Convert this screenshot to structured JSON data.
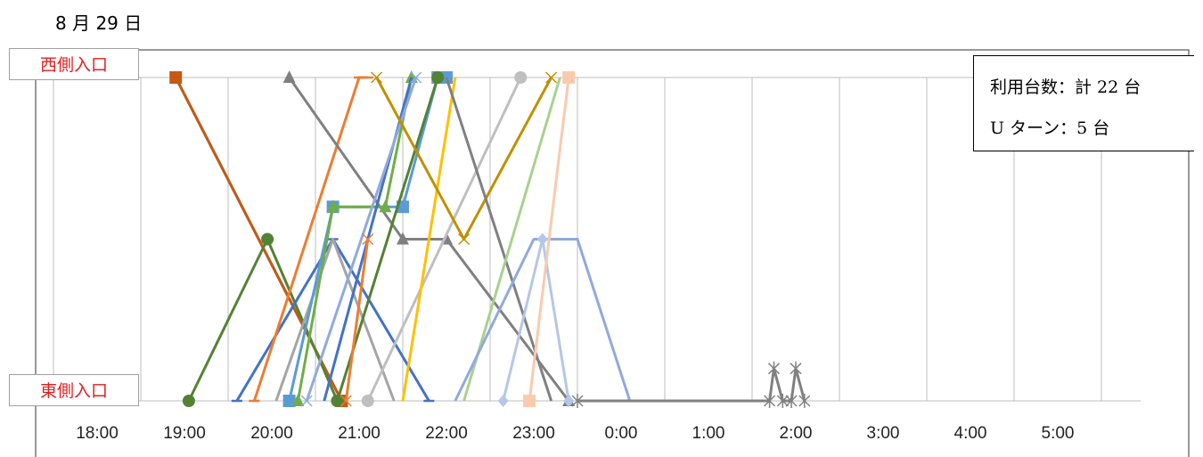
{
  "date_title": "8 月 29 日",
  "entrances": {
    "west": "西側入口",
    "east": "東側入口"
  },
  "info": {
    "usage": "利用台数：計 22 台",
    "uturn": "U ターン：5 台"
  },
  "chart_data": {
    "type": "line",
    "title": "8 月 29 日",
    "xlabel": "",
    "ylabel": "",
    "x_ticks": [
      "18:00",
      "19:00",
      "20:00",
      "21:00",
      "22:00",
      "23:00",
      "0:00",
      "1:00",
      "2:00",
      "3:00",
      "4:00",
      "5:00"
    ],
    "xlim": [
      17.0,
      30.0
    ],
    "y_levels": {
      "west": 1.0,
      "mid_upper": 0.6,
      "mid": 0.5,
      "east": 0.0
    },
    "grid": "vertical",
    "series": [
      {
        "color": "#4472c4",
        "marker": "none",
        "points": [
          [
            18.9,
            1
          ],
          [
            20.8,
            0
          ]
        ]
      },
      {
        "color": "#c55a11",
        "marker": "square",
        "points": [
          [
            18.9,
            1
          ],
          [
            20.8,
            0
          ]
        ]
      },
      {
        "color": "#548235",
        "marker": "circle",
        "points": [
          [
            19.05,
            0
          ],
          [
            19.95,
            0.5
          ],
          [
            20.75,
            0
          ]
        ]
      },
      {
        "color": "#4472c4",
        "marker": "dash",
        "points": [
          [
            19.6,
            0
          ],
          [
            20.7,
            0.5
          ],
          [
            21.8,
            0
          ]
        ]
      },
      {
        "color": "#ed7d31",
        "marker": "dash",
        "points": [
          [
            19.8,
            0
          ],
          [
            21.0,
            1
          ],
          [
            21.1,
            1
          ]
        ]
      },
      {
        "color": "#808080",
        "marker": "triangle",
        "points": [
          [
            20.2,
            1
          ],
          [
            21.5,
            0.5
          ],
          [
            22.0,
            0.5
          ],
          [
            23.4,
            0
          ]
        ]
      },
      {
        "color": "#a5a5a5",
        "marker": "none",
        "points": [
          [
            20.05,
            0
          ],
          [
            20.7,
            0.5
          ],
          [
            21.4,
            0
          ]
        ]
      },
      {
        "color": "#5b9bd5",
        "marker": "square",
        "points": [
          [
            20.2,
            0
          ],
          [
            20.7,
            0.6
          ],
          [
            21.5,
            0.6
          ],
          [
            21.9,
            1
          ],
          [
            22.0,
            1
          ]
        ]
      },
      {
        "color": "#70ad47",
        "marker": "triangle",
        "points": [
          [
            20.3,
            0
          ],
          [
            20.7,
            0.6
          ],
          [
            21.3,
            0.6
          ],
          [
            21.6,
            1
          ]
        ]
      },
      {
        "color": "#4472c4",
        "marker": "none",
        "points": [
          [
            20.6,
            0
          ],
          [
            21.6,
            1
          ]
        ]
      },
      {
        "color": "#8faadc",
        "marker": "x",
        "points": [
          [
            20.4,
            0
          ],
          [
            21.65,
            1
          ]
        ]
      },
      {
        "color": "#548235",
        "marker": "circle",
        "points": [
          [
            20.75,
            0
          ],
          [
            21.9,
            1
          ]
        ]
      },
      {
        "color": "#ed7d31",
        "marker": "x",
        "points": [
          [
            20.85,
            0
          ],
          [
            21.1,
            0.5
          ]
        ]
      },
      {
        "color": "#bfbfbf",
        "marker": "circle",
        "points": [
          [
            21.1,
            0
          ],
          [
            22.85,
            1
          ]
        ]
      },
      {
        "color": "#ffc000",
        "marker": "none",
        "points": [
          [
            21.5,
            0
          ],
          [
            22.1,
            1
          ]
        ]
      },
      {
        "color": "#bf9000",
        "marker": "x",
        "points": [
          [
            21.2,
            1
          ],
          [
            22.2,
            0.5
          ],
          [
            23.2,
            1
          ]
        ]
      },
      {
        "color": "#808080",
        "marker": "none",
        "points": [
          [
            22.0,
            1
          ],
          [
            23.2,
            0
          ]
        ]
      },
      {
        "color": "#a9d18e",
        "marker": "none",
        "points": [
          [
            22.2,
            0
          ],
          [
            23.3,
            1
          ]
        ]
      },
      {
        "color": "#8faadc",
        "marker": "none",
        "points": [
          [
            22.1,
            0
          ],
          [
            23.0,
            0.5
          ],
          [
            23.5,
            0.5
          ],
          [
            24.1,
            0
          ]
        ]
      },
      {
        "color": "#b4c7e7",
        "marker": "diamond",
        "points": [
          [
            22.65,
            0
          ],
          [
            23.1,
            0.5
          ],
          [
            23.4,
            0
          ]
        ]
      },
      {
        "color": "#f8cbad",
        "marker": "square",
        "points": [
          [
            22.95,
            0
          ],
          [
            23.4,
            1
          ]
        ]
      },
      {
        "color": "#808080",
        "marker": "star",
        "points": [
          [
            23.5,
            0
          ],
          [
            25.7,
            0
          ],
          [
            25.75,
            0.1
          ],
          [
            25.85,
            0
          ],
          [
            25.95,
            0
          ],
          [
            26.0,
            0.1
          ],
          [
            26.1,
            0
          ]
        ]
      }
    ]
  }
}
